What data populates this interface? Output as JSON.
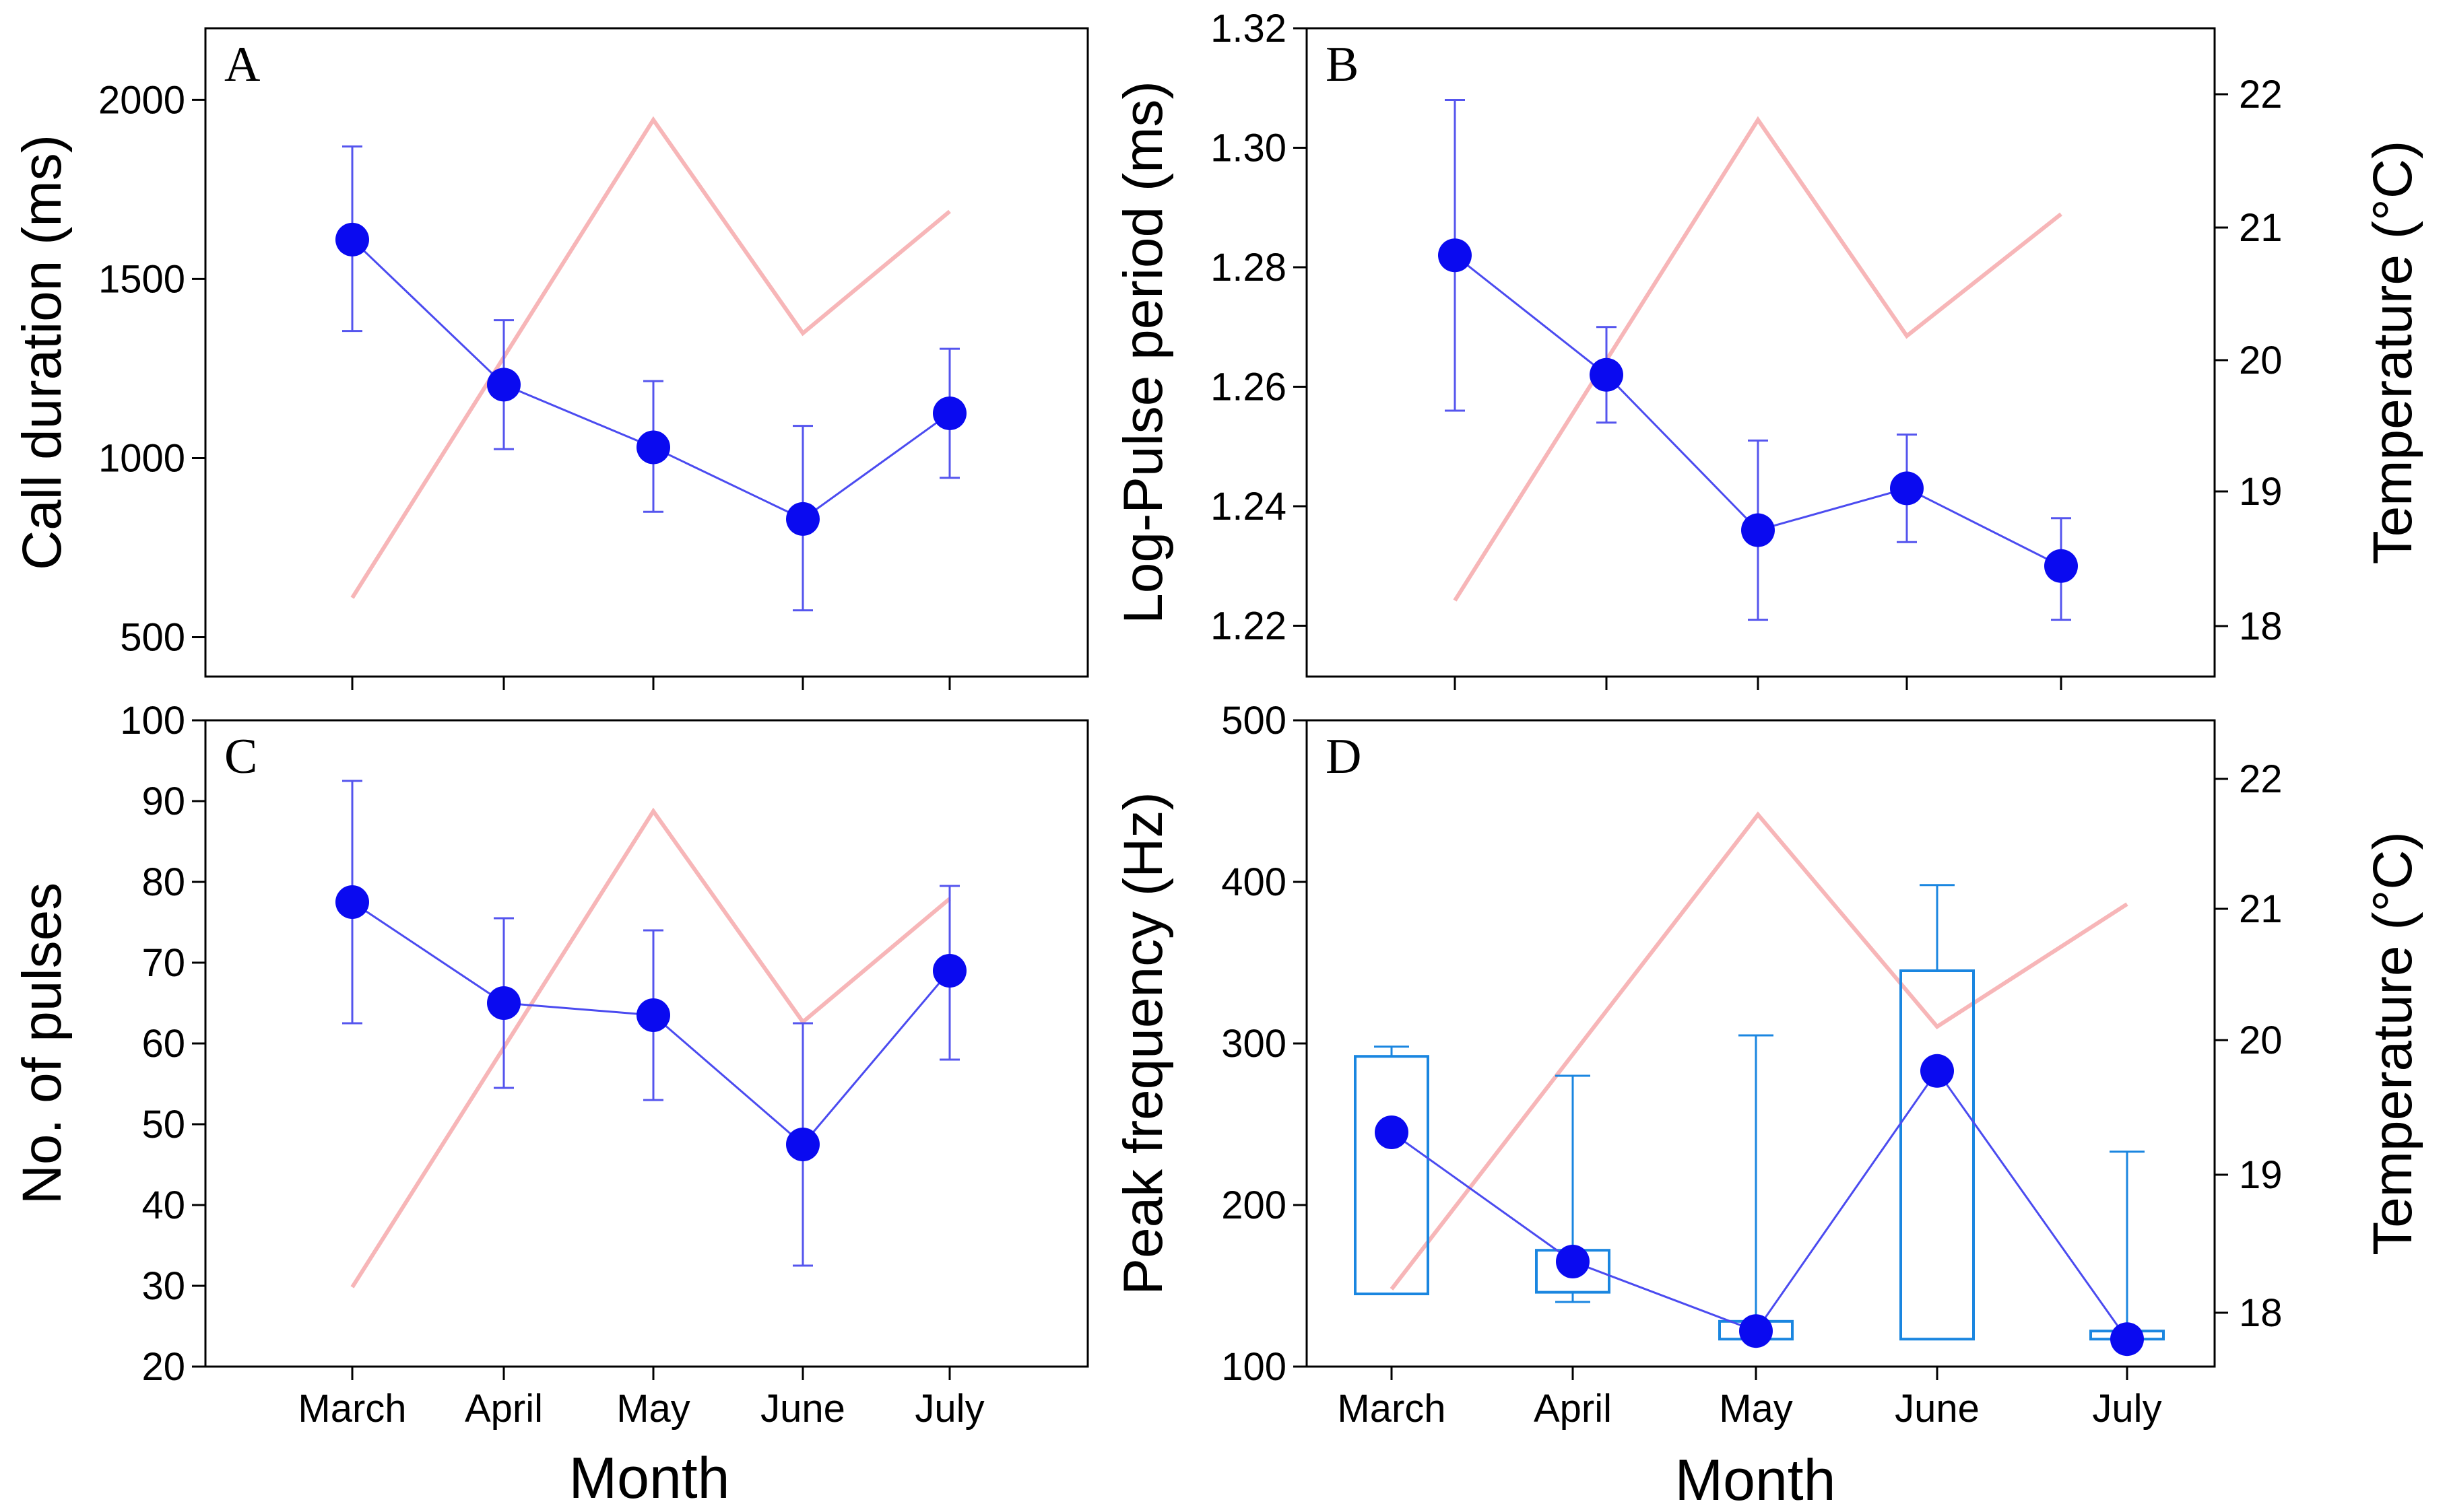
{
  "figure": {
    "xlabel_left": "Month",
    "xlabel_right": "Month"
  },
  "chart_data": [
    {
      "id": "A",
      "type": "line",
      "panel_label": "A",
      "title": "",
      "xlabel": "",
      "ylabel": "Call duration (ms)",
      "ylim": [
        390,
        2200
      ],
      "yticks": [
        500,
        1000,
        1500,
        2000
      ],
      "categories": [
        "March",
        "April",
        "May",
        "June",
        "July"
      ],
      "show_category_labels": false,
      "series": [
        {
          "name": "Call duration",
          "values": [
            1610,
            1205,
            1030,
            830,
            1125
          ],
          "err_low": [
            1355,
            1025,
            850,
            575,
            945
          ],
          "err_high": [
            1870,
            1385,
            1215,
            1090,
            1305
          ]
        },
        {
          "name": "Temperature",
          "values": [
            18.2,
            20.0,
            21.8,
            20.2,
            21.1
          ]
        }
      ],
      "y2label": "",
      "y2lim": [
        17.8,
        22.2
      ],
      "y2ticks": []
    },
    {
      "id": "B",
      "type": "line",
      "panel_label": "B",
      "title": "",
      "xlabel": "",
      "ylabel": "Log-Pulse period (ms)",
      "ylim": [
        1.2115,
        1.32
      ],
      "yticks": [
        1.22,
        1.24,
        1.26,
        1.28,
        1.3,
        1.32
      ],
      "categories": [
        "March",
        "April",
        "May",
        "June",
        "July"
      ],
      "show_category_labels": false,
      "series": [
        {
          "name": "Log-Pulse period",
          "values": [
            1.282,
            1.262,
            1.236,
            1.243,
            1.23
          ],
          "err_low": [
            1.256,
            1.254,
            1.221,
            1.234,
            1.221
          ],
          "err_high": [
            1.308,
            1.27,
            1.251,
            1.252,
            1.238
          ]
        },
        {
          "name": "Temperature",
          "values": [
            18.2,
            20.0,
            21.8,
            20.2,
            21.1
          ]
        }
      ],
      "y2label": "Temperature (°C)",
      "y2lim": [
        17.8,
        22.3
      ],
      "y2ticks": [
        18,
        19,
        20,
        21,
        22
      ]
    },
    {
      "id": "C",
      "type": "line",
      "panel_label": "C",
      "title": "",
      "xlabel": "",
      "ylabel": "No. of pulses",
      "ylim": [
        20,
        100
      ],
      "yticks": [
        20,
        30,
        40,
        50,
        60,
        70,
        80,
        90,
        100
      ],
      "categories": [
        "March",
        "April",
        "May",
        "June",
        "July"
      ],
      "show_category_labels": true,
      "series": [
        {
          "name": "No. of pulses",
          "values": [
            77.5,
            65,
            63.5,
            47.5,
            69
          ],
          "err_low": [
            62.5,
            54.5,
            53,
            32.5,
            58
          ],
          "err_high": [
            92.5,
            75.5,
            74,
            62.5,
            79.5
          ]
        },
        {
          "name": "Temperature",
          "values": [
            18.2,
            20.0,
            21.8,
            20.2,
            21.1
          ]
        }
      ],
      "y2label": "",
      "y2lim": [
        17.8,
        22.2
      ],
      "y2ticks": []
    },
    {
      "id": "D",
      "type": "box",
      "panel_label": "D",
      "title": "",
      "xlabel": "",
      "ylabel": "Peak frequency (Hz)",
      "ylim": [
        100,
        500
      ],
      "yticks": [
        100,
        200,
        300,
        400,
        500
      ],
      "categories": [
        "March",
        "April",
        "May",
        "June",
        "July"
      ],
      "show_category_labels": true,
      "series": [
        {
          "name": "Peak frequency",
          "values": [
            245,
            165,
            122,
            283,
            117
          ]
        },
        {
          "name": "Temperature",
          "values": [
            18.1,
            20.0,
            21.8,
            20.2,
            21.1
          ]
        }
      ],
      "boxes": [
        {
          "category": "March",
          "box_low": 145,
          "box_high": 292,
          "whisker_low": 145,
          "whisker_high": 298
        },
        {
          "category": "April",
          "box_low": 146,
          "box_high": 172,
          "whisker_low": 140,
          "whisker_high": 280
        },
        {
          "category": "May",
          "box_low": 117,
          "box_high": 128,
          "whisker_low": 117,
          "whisker_high": 305
        },
        {
          "category": "June",
          "box_low": 117,
          "box_high": 345,
          "whisker_low": 117,
          "whisker_high": 398
        },
        {
          "category": "July",
          "box_low": 117,
          "box_high": 122,
          "whisker_low": 117,
          "whisker_high": 233
        }
      ],
      "y2label": "Temperature (°C)",
      "y2lim": [
        17.7,
        22.3
      ],
      "y2ticks": [
        18,
        19,
        20,
        21,
        22
      ]
    }
  ],
  "colors": {
    "series": "#0a0af0",
    "line": "#4b4bf0",
    "error": "#5555ee",
    "temperature": "#f7b6b8",
    "box": "#1a86e0",
    "axis": "#000000"
  }
}
